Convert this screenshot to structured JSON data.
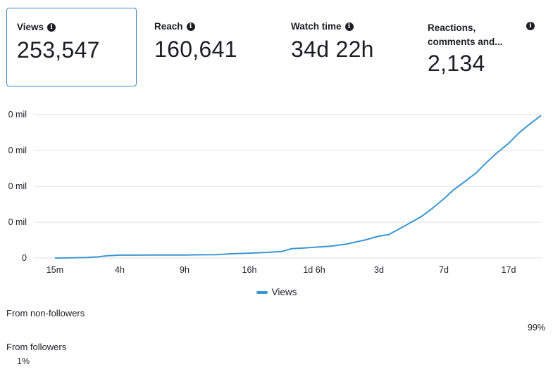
{
  "cards": [
    {
      "label": "Views",
      "value": "253,547",
      "active": true
    },
    {
      "label": "Reach",
      "value": "160,641",
      "active": false
    },
    {
      "label": "Watch time",
      "value": "34d 22h",
      "active": false
    },
    {
      "label": "Reactions, comments and...",
      "value": "2,134",
      "active": false
    }
  ],
  "chart_data": {
    "type": "line",
    "x_ticks": [
      "15m",
      "4h",
      "9h",
      "16h",
      "1d 6h",
      "3d",
      "7d",
      "17d"
    ],
    "y_ticks": [
      "0 mil",
      "0 mil",
      "0 mil",
      "0 mil",
      "0"
    ],
    "series": [
      {
        "name": "Views",
        "color": "#3b96d1",
        "x_index": [
          0,
          0.5,
          1,
          1.3,
          1.6,
          2,
          2.5,
          3,
          3.5,
          4,
          4.5,
          5,
          5.5,
          6,
          6.5,
          7,
          7.3,
          7.6,
          8,
          8.5,
          9,
          9.3,
          9.6,
          10,
          10.3,
          10.6,
          11,
          11.3,
          11.6,
          12,
          12.3,
          12.6,
          13,
          13.3,
          13.6,
          14,
          14.3,
          14.6,
          15
        ],
        "values": [
          0.0,
          0.01,
          0.03,
          0.06,
          0.12,
          0.16,
          0.16,
          0.17,
          0.17,
          0.17,
          0.18,
          0.19,
          0.24,
          0.27,
          0.31,
          0.36,
          0.52,
          0.55,
          0.6,
          0.66,
          0.78,
          0.9,
          1.02,
          1.22,
          1.3,
          1.6,
          2.0,
          2.3,
          2.7,
          3.3,
          3.8,
          4.2,
          4.75,
          5.3,
          5.8,
          6.4,
          6.95,
          7.4,
          7.95
        ]
      }
    ],
    "ylim": [
      0,
      8
    ]
  },
  "legend": {
    "label": "Views"
  },
  "split": {
    "non_followers_label": "From non-followers",
    "non_followers_pct": "99%",
    "followers_label": "From followers",
    "followers_pct": "1%"
  }
}
